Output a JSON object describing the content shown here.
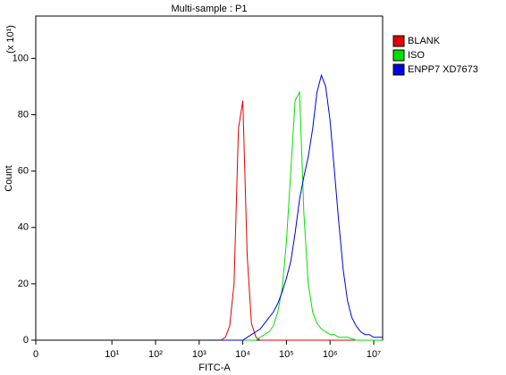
{
  "chart_data": {
    "type": "line",
    "title": "Multi-sample : P1",
    "xlabel": "FITC-A",
    "ylabel": "Count",
    "ylabel_multiplier": "(x 10¹)",
    "xscale": "log",
    "xlim": [
      0,
      16000000
    ],
    "xticks": [
      0,
      {
        "value": 10,
        "label": "10¹"
      },
      {
        "value": 100,
        "label": "10²"
      },
      {
        "value": 1000,
        "label": "10³"
      },
      {
        "value": 10000,
        "label": "10⁴"
      },
      {
        "value": 100000,
        "label": "10⁵"
      },
      {
        "value": 1000000,
        "label": "10⁶"
      },
      {
        "value": 10000000,
        "label": "10⁷"
      }
    ],
    "ylim": [
      0,
      115
    ],
    "yticks": [
      0,
      20,
      40,
      60,
      80,
      100
    ],
    "legend": "right",
    "x": [
      3160,
      3980,
      5010,
      6310,
      7940,
      10000,
      12600,
      15800,
      20000,
      25100,
      31600,
      39800,
      50100,
      63100,
      79400,
      100000,
      126000,
      158000,
      200000,
      251000,
      316000,
      398000,
      501000,
      631000,
      794000,
      1000000,
      1260000,
      1580000,
      2000000,
      2510000,
      3160000,
      3980000,
      5010000,
      6310000,
      7940000,
      10000000,
      12600000,
      15800000
    ],
    "series": [
      {
        "name": "BLANK",
        "color": "#e00000",
        "values": [
          0,
          1,
          5,
          20,
          75,
          85,
          30,
          6,
          1,
          0,
          0,
          0,
          0,
          0,
          0,
          0,
          0,
          0,
          0,
          0,
          0,
          0,
          0,
          0,
          0,
          0,
          0,
          0,
          0,
          0,
          0,
          0,
          0,
          0,
          0,
          0,
          0,
          0
        ]
      },
      {
        "name": "ISO",
        "color": "#00e000",
        "values": [
          0,
          0,
          0,
          0,
          0,
          0,
          0,
          0,
          0,
          1,
          2,
          3,
          5,
          10,
          18,
          35,
          60,
          85,
          88,
          45,
          20,
          10,
          6,
          4,
          3,
          2,
          2,
          1,
          1,
          1,
          0.5,
          0,
          0,
          0,
          0,
          0,
          0,
          0
        ]
      },
      {
        "name": "ENPP7 XD7673",
        "color": "#0000e0",
        "values": [
          0,
          0,
          0,
          0,
          0,
          0,
          1,
          2,
          3,
          4,
          6,
          8,
          10,
          13,
          17,
          22,
          28,
          38,
          50,
          58,
          65,
          75,
          88,
          94,
          90,
          78,
          60,
          42,
          25,
          14,
          8,
          5,
          3,
          2,
          2,
          1,
          1,
          1
        ]
      }
    ]
  }
}
